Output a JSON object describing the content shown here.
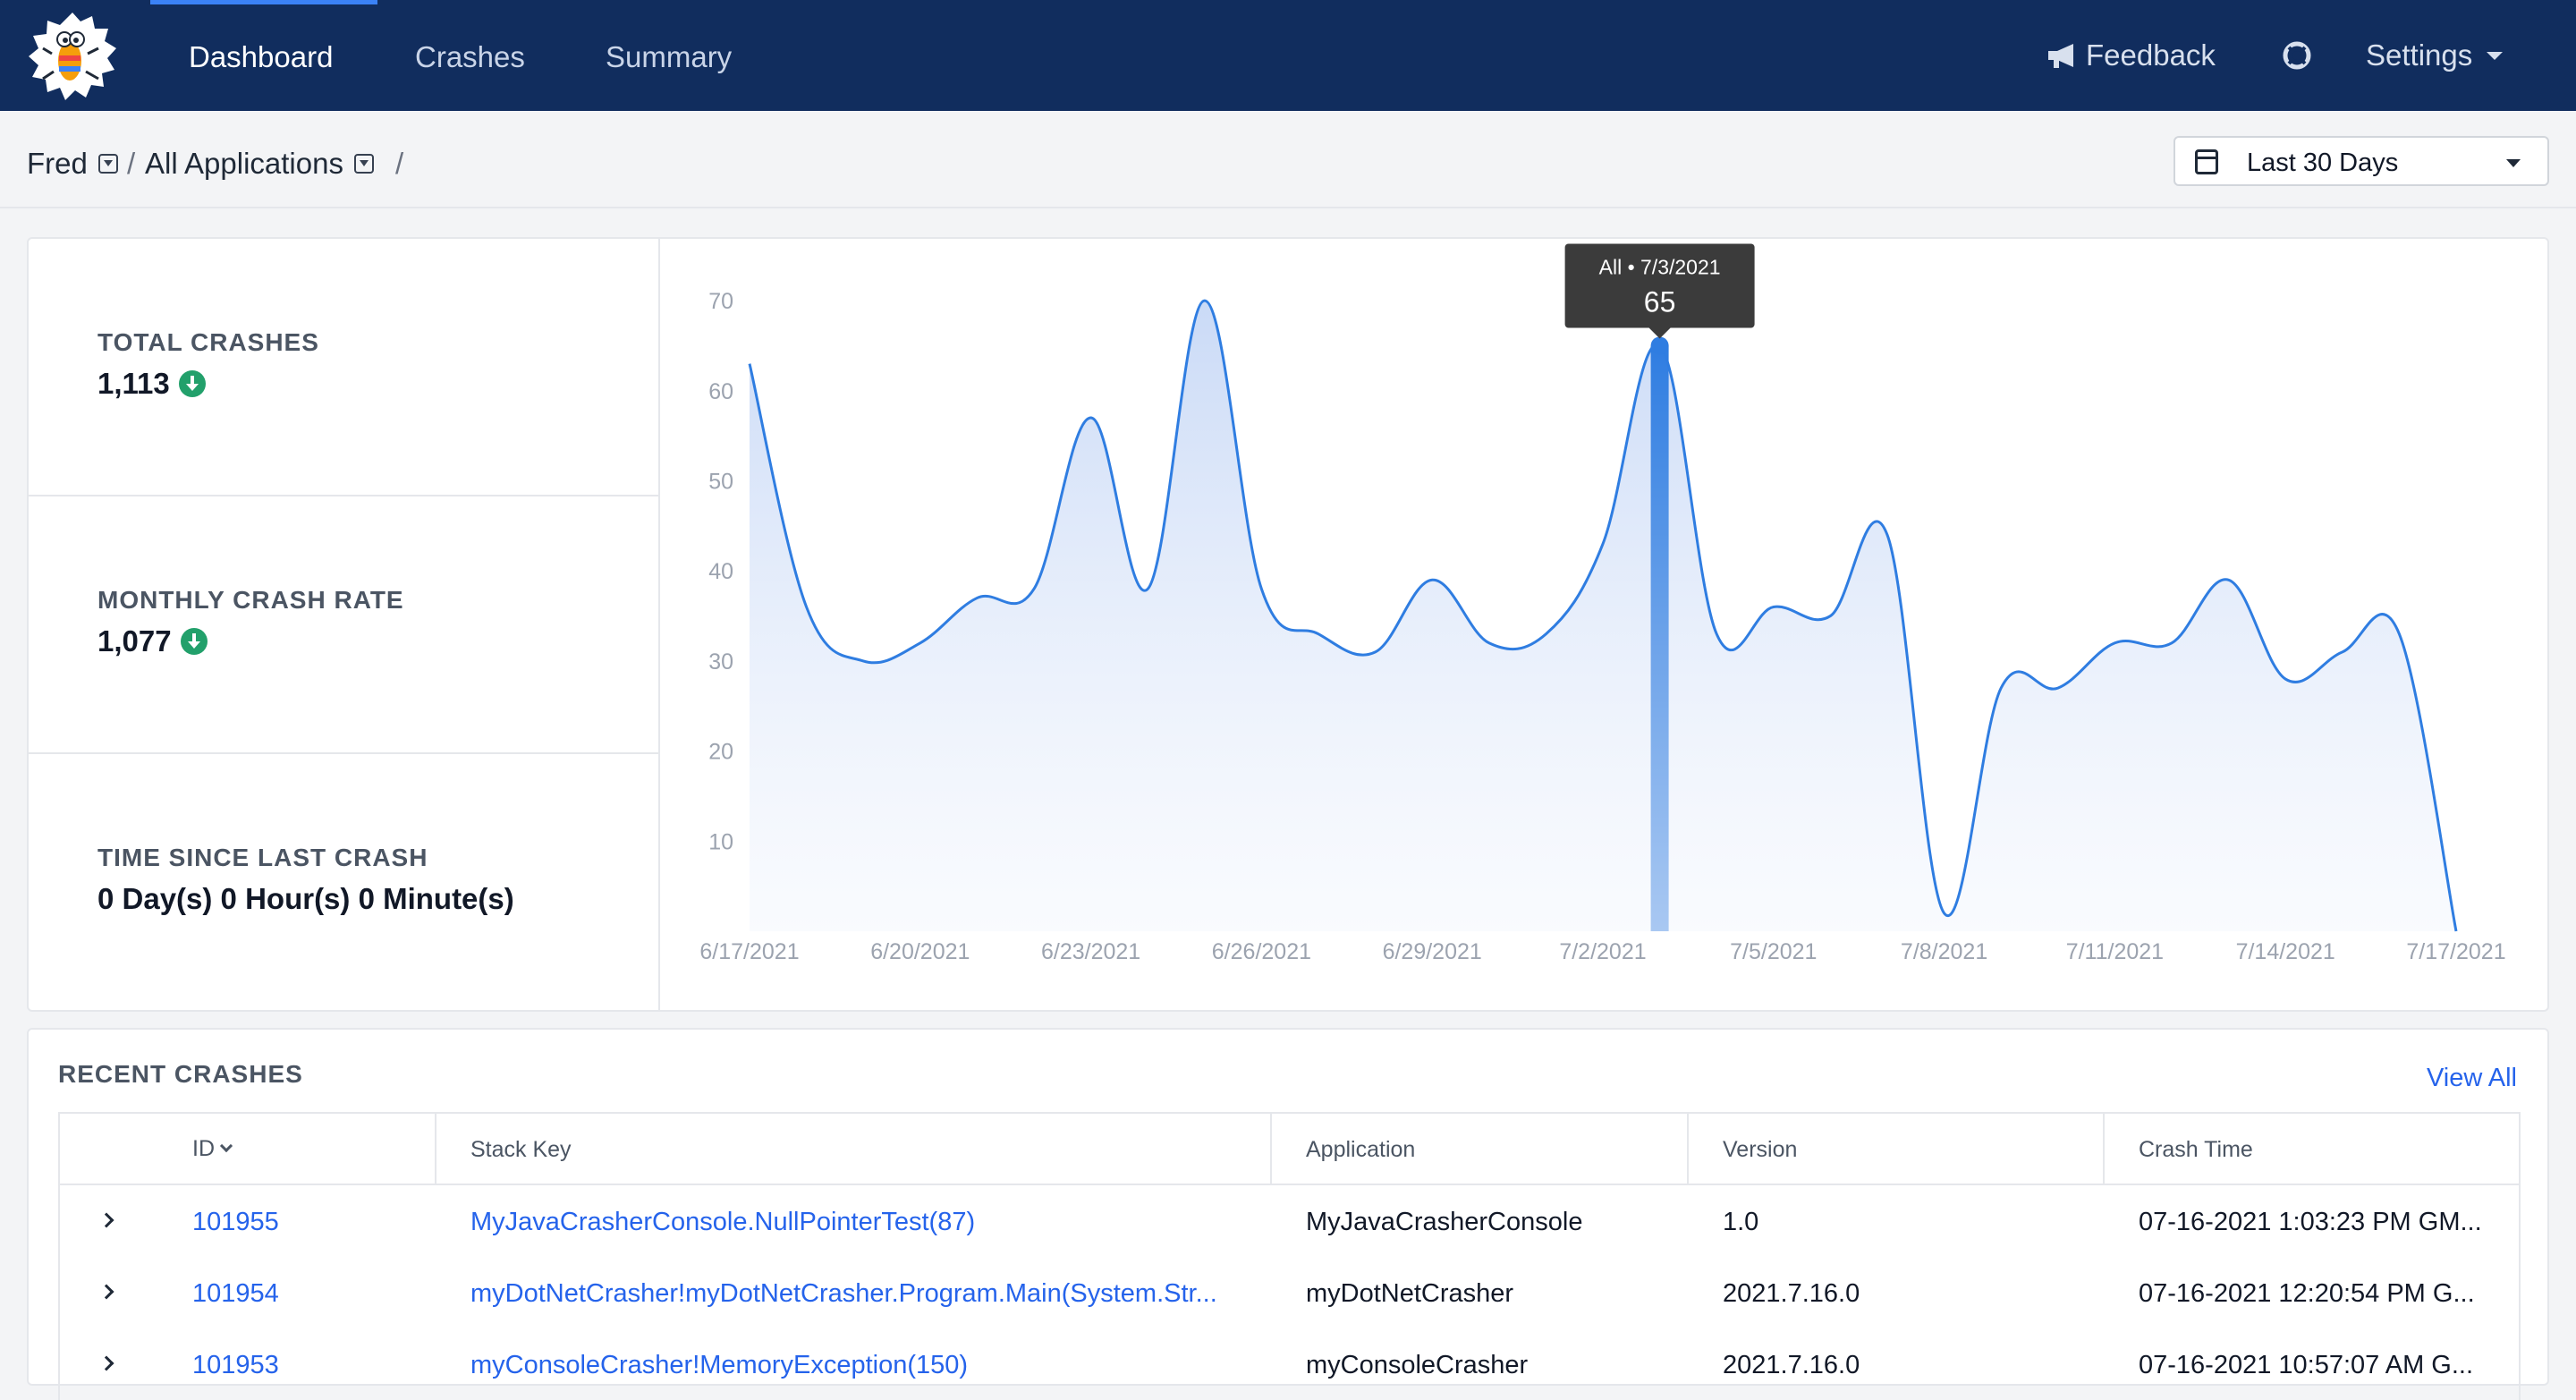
{
  "nav": {
    "tabs": [
      {
        "label": "Dashboard",
        "active": true
      },
      {
        "label": "Crashes",
        "active": false
      },
      {
        "label": "Summary",
        "active": false
      }
    ],
    "feedback_label": "Feedback",
    "help_icon": "lifebuoy-icon",
    "settings_label": "Settings",
    "accent": "#3b82f6",
    "bg": "#112d5e"
  },
  "breadcrumb": {
    "database": "Fred",
    "application": "All Applications",
    "sep1": "/",
    "sep2": "/"
  },
  "date_range": {
    "value": "Last 30 Days"
  },
  "stats": [
    {
      "label": "TOTAL CRASHES",
      "value": "1,113",
      "trend": "down"
    },
    {
      "label": "MONTHLY CRASH RATE",
      "value": "1,077",
      "trend": "down"
    },
    {
      "label": "TIME SINCE LAST CRASH",
      "value": "0 Day(s) 0 Hour(s) 0 Minute(s)"
    }
  ],
  "tooltip": {
    "title": "All • 7/3/2021",
    "value": "65"
  },
  "chart_data": {
    "type": "area",
    "series": [
      {
        "values": [
          63,
          36,
          30,
          32,
          37,
          38,
          57,
          38,
          70,
          38,
          33,
          31,
          39,
          32,
          33,
          43,
          65,
          33,
          36,
          35,
          44,
          2,
          27,
          27,
          32,
          32,
          39,
          28,
          31,
          33,
          0
        ]
      }
    ],
    "x": [
      "6/17/2021",
      "6/18/2021",
      "6/19/2021",
      "6/20/2021",
      "6/21/2021",
      "6/22/2021",
      "6/23/2021",
      "6/24/2021",
      "6/25/2021",
      "6/26/2021",
      "6/27/2021",
      "6/28/2021",
      "6/29/2021",
      "6/30/2021",
      "7/1/2021",
      "7/2/2021",
      "7/3/2021",
      "7/4/2021",
      "7/5/2021",
      "7/6/2021",
      "7/7/2021",
      "7/8/2021",
      "7/9/2021",
      "7/10/2021",
      "7/11/2021",
      "7/12/2021",
      "7/13/2021",
      "7/14/2021",
      "7/15/2021",
      "7/16/2021",
      "7/17/2021"
    ],
    "x_ticks": [
      "6/17/2021",
      "6/20/2021",
      "6/23/2021",
      "6/26/2021",
      "6/29/2021",
      "7/2/2021",
      "7/5/2021",
      "7/8/2021",
      "7/11/2021",
      "7/14/2021",
      "7/17/2021"
    ],
    "y_ticks": [
      10,
      20,
      30,
      40,
      50,
      60,
      70
    ],
    "ylim": [
      0,
      72
    ],
    "highlight_index": 16,
    "color": "#2f7de1"
  },
  "recent": {
    "title": "RECENT CRASHES",
    "view_all": "View All",
    "columns": {
      "id": "ID",
      "stack": "Stack Key",
      "app": "Application",
      "version": "Version",
      "time": "Crash Time"
    },
    "rows": [
      {
        "id": "101955",
        "stack": "MyJavaCrasherConsole.NullPointerTest(87)",
        "app": "MyJavaCrasherConsole",
        "version": "1.0",
        "time": "07-16-2021 1:03:23 PM GM..."
      },
      {
        "id": "101954",
        "stack": "myDotNetCrasher!myDotNetCrasher.Program.Main(System.Str...",
        "app": "myDotNetCrasher",
        "version": "2021.7.16.0",
        "time": "07-16-2021 12:20:54 PM G..."
      },
      {
        "id": "101953",
        "stack": "myConsoleCrasher!MemoryException(150)",
        "app": "myConsoleCrasher",
        "version": "2021.7.16.0",
        "time": "07-16-2021 10:57:07 AM G..."
      }
    ]
  }
}
